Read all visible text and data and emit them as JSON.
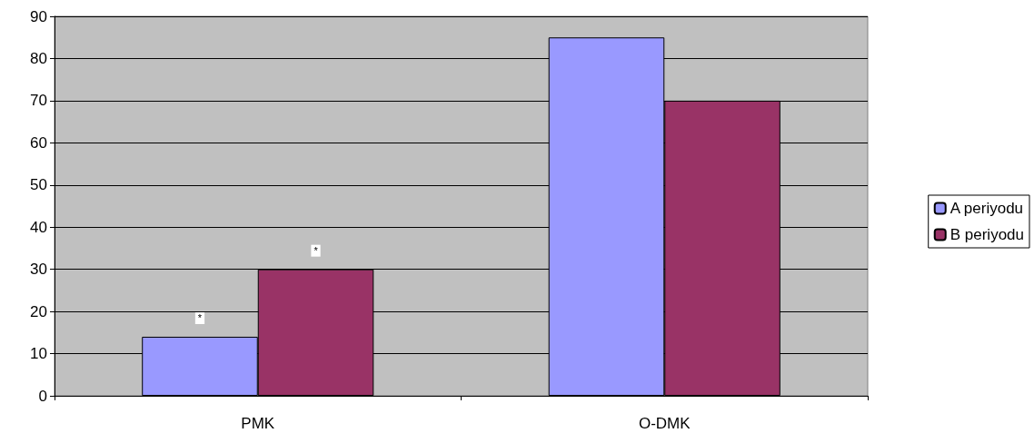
{
  "chart_data": {
    "type": "bar",
    "categories": [
      "PMK",
      "O-DMK"
    ],
    "series": [
      {
        "name": "A periyodu",
        "color": "#9999ff",
        "values": [
          14,
          85
        ],
        "value_labels": [
          "*",
          null
        ]
      },
      {
        "name": "B periyodu",
        "color": "#993366",
        "values": [
          30,
          70
        ],
        "value_labels": [
          "*",
          null
        ]
      }
    ],
    "ylim": [
      0,
      90
    ],
    "yticks": [
      0,
      10,
      20,
      30,
      40,
      50,
      60,
      70,
      80,
      90
    ],
    "grid": "y",
    "legend": "right"
  }
}
